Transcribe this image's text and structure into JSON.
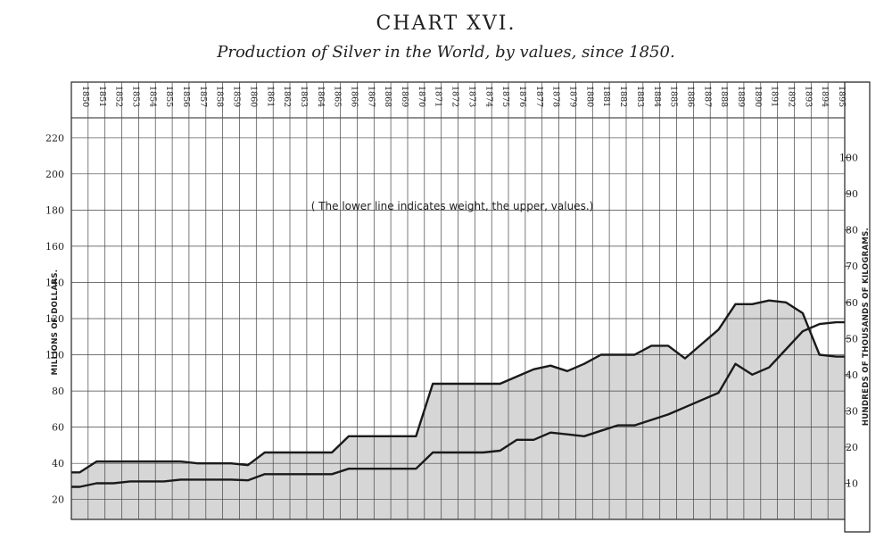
{
  "chart_data": {
    "type": "area",
    "title": "CHART XVI.",
    "subtitle": "Production of Silver in the World, by values, since 1850.",
    "annotation": "( The lower line indicates weight, the upper, values.)",
    "x": [
      1850,
      1851,
      1852,
      1853,
      1854,
      1855,
      1856,
      1857,
      1858,
      1859,
      1860,
      1861,
      1862,
      1863,
      1864,
      1865,
      1866,
      1867,
      1868,
      1869,
      1870,
      1871,
      1872,
      1873,
      1874,
      1875,
      1876,
      1877,
      1878,
      1879,
      1880,
      1881,
      1882,
      1883,
      1884,
      1885,
      1886,
      1887,
      1888,
      1889,
      1890,
      1891,
      1892,
      1893,
      1894,
      1895
    ],
    "x_tick_labels": [
      "1850",
      "1851",
      "1852",
      "1853",
      "1854",
      "1855",
      "1856",
      "1857",
      "1858",
      "1859",
      "1860",
      "1861",
      "1862",
      "1863",
      "1864",
      "1865",
      "1866",
      "1867",
      "1868",
      "1869",
      "1870",
      "1871",
      "1872",
      "1873",
      "1874",
      "1875",
      "1876",
      "1877",
      "1878",
      "1879",
      "1880",
      "1881",
      "1882",
      "1883",
      "1884",
      "1885",
      "1886",
      "1887",
      "1888",
      "1889",
      "1890",
      "1891",
      "1892",
      "1893",
      "1894",
      "1895"
    ],
    "ylabel": "MILLIONS OF DOLLARS.",
    "y2label": "HUNDREDS OF THOUSANDS OF KILOGRAMS.",
    "y_ticks": [
      20,
      40,
      60,
      80,
      100,
      120,
      140,
      160,
      180,
      200,
      220
    ],
    "y2_ticks": [
      10,
      20,
      30,
      40,
      50,
      60,
      70,
      80,
      90,
      100
    ],
    "ylim": [
      9,
      231
    ],
    "y2lim": [
      0,
      111
    ],
    "grid": true,
    "series": [
      {
        "axis": "left",
        "values": [
          35,
          41,
          41,
          41,
          41,
          41,
          41,
          40,
          40,
          40,
          39,
          46,
          46,
          46,
          46,
          46,
          55,
          55,
          55,
          55,
          55,
          84,
          84,
          84,
          84,
          84,
          88,
          92,
          94,
          91,
          95,
          100,
          100,
          100,
          105,
          105,
          98,
          106,
          114,
          128,
          128,
          130,
          129,
          123,
          100,
          99
        ]
      },
      {
        "axis": "right",
        "values": [
          9,
          10,
          10,
          10.5,
          10.5,
          10.5,
          11,
          11,
          11,
          11,
          10.8,
          12.5,
          12.5,
          12.5,
          12.5,
          12.5,
          14,
          14,
          14,
          14,
          14,
          18.5,
          18.5,
          18.5,
          18.5,
          19,
          22,
          22,
          24,
          23.5,
          23,
          24.5,
          26,
          26,
          27.5,
          29,
          31,
          33,
          35,
          43,
          40,
          42,
          47,
          52,
          54,
          54.5
        ]
      }
    ]
  }
}
